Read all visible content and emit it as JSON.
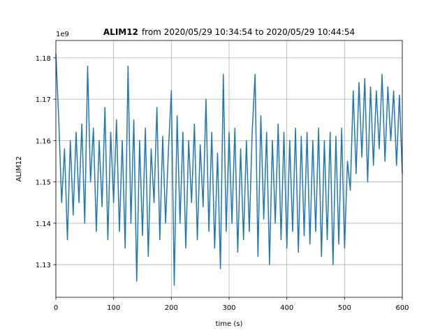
{
  "chart_data": {
    "type": "line",
    "title_bold": "ALIM12",
    "title": "from 2020/05/29 10:34:54 to 2020/05/29 10:44:54",
    "x_label": "time (s)",
    "y_label": "ALIM12",
    "y_offset_label": "1e9",
    "x": [
      0,
      5,
      10,
      15,
      20,
      25,
      30,
      35,
      40,
      45,
      50,
      55,
      60,
      65,
      70,
      75,
      80,
      85,
      90,
      95,
      100,
      105,
      110,
      115,
      120,
      125,
      130,
      135,
      140,
      145,
      150,
      155,
      160,
      165,
      170,
      175,
      180,
      185,
      190,
      195,
      200,
      205,
      210,
      215,
      220,
      225,
      230,
      235,
      240,
      245,
      250,
      255,
      260,
      265,
      270,
      275,
      280,
      285,
      290,
      295,
      300,
      305,
      310,
      315,
      320,
      325,
      330,
      335,
      340,
      345,
      350,
      355,
      360,
      365,
      370,
      375,
      380,
      385,
      390,
      395,
      400,
      405,
      410,
      415,
      420,
      425,
      430,
      435,
      440,
      445,
      450,
      455,
      460,
      465,
      470,
      475,
      480,
      485,
      490,
      495,
      500,
      505,
      510,
      515,
      520,
      525,
      530,
      535,
      540,
      545,
      550,
      555,
      560,
      565,
      570,
      575,
      580,
      585,
      590,
      595,
      600
    ],
    "series": [
      {
        "name": "ALIM12",
        "color": "#1f77b4",
        "values": [
          1.181,
          1.165,
          1.145,
          1.158,
          1.136,
          1.16,
          1.142,
          1.162,
          1.145,
          1.164,
          1.14,
          1.178,
          1.15,
          1.163,
          1.138,
          1.16,
          1.144,
          1.168,
          1.136,
          1.162,
          1.145,
          1.165,
          1.138,
          1.16,
          1.134,
          1.178,
          1.14,
          1.165,
          1.126,
          1.16,
          1.137,
          1.163,
          1.132,
          1.158,
          1.145,
          1.168,
          1.136,
          1.161,
          1.14,
          1.158,
          1.172,
          1.125,
          1.166,
          1.14,
          1.162,
          1.134,
          1.16,
          1.145,
          1.164,
          1.136,
          1.159,
          1.144,
          1.17,
          1.138,
          1.162,
          1.134,
          1.157,
          1.129,
          1.176,
          1.138,
          1.162,
          1.14,
          1.163,
          1.133,
          1.158,
          1.136,
          1.16,
          1.138,
          1.162,
          1.176,
          1.132,
          1.166,
          1.141,
          1.162,
          1.13,
          1.16,
          1.14,
          1.164,
          1.136,
          1.162,
          1.134,
          1.16,
          1.138,
          1.163,
          1.133,
          1.161,
          1.137,
          1.162,
          1.135,
          1.16,
          1.138,
          1.163,
          1.132,
          1.16,
          1.136,
          1.162,
          1.13,
          1.161,
          1.135,
          1.163,
          1.134,
          1.155,
          1.148,
          1.172,
          1.152,
          1.174,
          1.156,
          1.175,
          1.15,
          1.173,
          1.154,
          1.172,
          1.158,
          1.176,
          1.155,
          1.173,
          1.16,
          1.172,
          1.154,
          1.171,
          1.152
        ]
      }
    ],
    "xlim": [
      0,
      600
    ],
    "xticks": [
      0,
      100,
      200,
      300,
      400,
      500,
      600
    ],
    "ylim": [
      1.1221,
      1.1842
    ],
    "yticks": [
      1.13,
      1.14,
      1.15,
      1.16,
      1.17,
      1.18
    ],
    "grid": true
  }
}
